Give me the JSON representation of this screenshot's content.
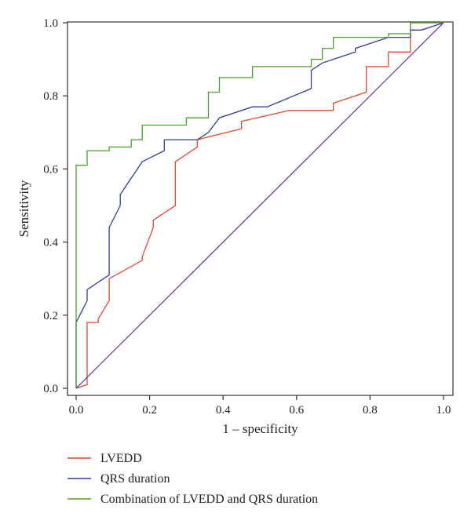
{
  "chart_data": {
    "type": "line",
    "xlabel": "1 – specificity",
    "ylabel": "Sensitivity",
    "xlim": [
      0,
      1
    ],
    "ylim": [
      0,
      1
    ],
    "xticks": [
      "0.0",
      "0.2",
      "0.4",
      "0.6",
      "0.8",
      "1.0"
    ],
    "yticks": [
      "0.0",
      "0.2",
      "0.4",
      "0.6",
      "0.8",
      "1.0"
    ],
    "grid": false,
    "legend_position": "bottom",
    "series": [
      {
        "name": "LVEDD",
        "color": "#e04a2a",
        "points": [
          [
            0,
            0
          ],
          [
            0.03,
            0.01
          ],
          [
            0.03,
            0.18
          ],
          [
            0.06,
            0.18
          ],
          [
            0.06,
            0.19
          ],
          [
            0.09,
            0.24
          ],
          [
            0.09,
            0.3
          ],
          [
            0.18,
            0.35
          ],
          [
            0.18,
            0.36
          ],
          [
            0.21,
            0.44
          ],
          [
            0.21,
            0.46
          ],
          [
            0.27,
            0.5
          ],
          [
            0.27,
            0.62
          ],
          [
            0.33,
            0.66
          ],
          [
            0.33,
            0.68
          ],
          [
            0.45,
            0.71
          ],
          [
            0.45,
            0.73
          ],
          [
            0.58,
            0.76
          ],
          [
            0.7,
            0.76
          ],
          [
            0.7,
            0.78
          ],
          [
            0.79,
            0.81
          ],
          [
            0.79,
            0.88
          ],
          [
            0.85,
            0.88
          ],
          [
            0.85,
            0.92
          ],
          [
            0.91,
            0.92
          ],
          [
            0.91,
            1.0
          ],
          [
            1.0,
            1.0
          ]
        ]
      },
      {
        "name": "QRS duration",
        "color": "#2d3ea0",
        "points": [
          [
            0,
            0
          ],
          [
            0,
            0.18
          ],
          [
            0.03,
            0.24
          ],
          [
            0.03,
            0.27
          ],
          [
            0.09,
            0.31
          ],
          [
            0.09,
            0.44
          ],
          [
            0.12,
            0.5
          ],
          [
            0.12,
            0.53
          ],
          [
            0.18,
            0.62
          ],
          [
            0.24,
            0.65
          ],
          [
            0.24,
            0.68
          ],
          [
            0.33,
            0.68
          ],
          [
            0.36,
            0.7
          ],
          [
            0.39,
            0.74
          ],
          [
            0.48,
            0.77
          ],
          [
            0.52,
            0.77
          ],
          [
            0.64,
            0.82
          ],
          [
            0.64,
            0.87
          ],
          [
            0.67,
            0.89
          ],
          [
            0.76,
            0.92
          ],
          [
            0.76,
            0.93
          ],
          [
            0.79,
            0.94
          ],
          [
            0.85,
            0.96
          ],
          [
            0.91,
            0.96
          ],
          [
            0.91,
            0.98
          ],
          [
            0.94,
            0.98
          ],
          [
            1.0,
            1.0
          ]
        ]
      },
      {
        "name": "Combination of LVEDD and QRS duration",
        "color": "#4aa12c",
        "points": [
          [
            0,
            0
          ],
          [
            0,
            0.61
          ],
          [
            0.03,
            0.61
          ],
          [
            0.03,
            0.65
          ],
          [
            0.09,
            0.65
          ],
          [
            0.09,
            0.66
          ],
          [
            0.15,
            0.66
          ],
          [
            0.15,
            0.68
          ],
          [
            0.18,
            0.68
          ],
          [
            0.18,
            0.72
          ],
          [
            0.3,
            0.72
          ],
          [
            0.3,
            0.74
          ],
          [
            0.36,
            0.74
          ],
          [
            0.36,
            0.81
          ],
          [
            0.39,
            0.81
          ],
          [
            0.39,
            0.85
          ],
          [
            0.48,
            0.85
          ],
          [
            0.48,
            0.88
          ],
          [
            0.64,
            0.88
          ],
          [
            0.64,
            0.9
          ],
          [
            0.67,
            0.9
          ],
          [
            0.67,
            0.93
          ],
          [
            0.7,
            0.93
          ],
          [
            0.7,
            0.96
          ],
          [
            0.85,
            0.96
          ],
          [
            0.85,
            0.97
          ],
          [
            0.91,
            0.97
          ],
          [
            0.91,
            1.0
          ],
          [
            1.0,
            1.0
          ]
        ]
      },
      {
        "name": "",
        "color": "#6b3fa0",
        "points": [
          [
            0,
            0
          ],
          [
            1,
            1
          ]
        ]
      }
    ],
    "legend": [
      {
        "label": "LVEDD",
        "color": "#e04a2a"
      },
      {
        "label": "QRS duration",
        "color": "#2d3ea0"
      },
      {
        "label": "Combination of LVEDD and QRS duration",
        "color": "#4aa12c"
      }
    ]
  }
}
